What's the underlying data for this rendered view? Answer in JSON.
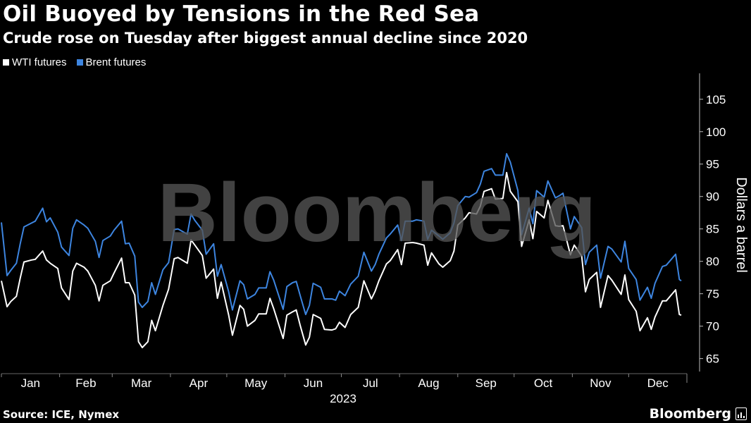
{
  "title": "Oil Buoyed by Tensions in the Red Sea",
  "subtitle": "Crude rose on Tuesday after biggest annual decline since 2020",
  "source": "Source: ICE, Nymex",
  "brand": "Bloomberg",
  "watermark": "Bloomberg",
  "chart_data": {
    "type": "line",
    "xlabel": "2023",
    "ylabel": "Dollars a barrel",
    "ylim": [
      63,
      109
    ],
    "yticks": [
      65,
      70,
      75,
      80,
      85,
      90,
      95,
      100,
      105
    ],
    "x_start": "2023-01-01",
    "x_end": "2024-01-01",
    "months": [
      "Jan",
      "Feb",
      "Mar",
      "Apr",
      "May",
      "Jun",
      "Jul",
      "Aug",
      "Sep",
      "Oct",
      "Nov",
      "Dec"
    ],
    "grid": false,
    "legend_position": "top-left",
    "series": [
      {
        "name": "WTI futures",
        "color": "#ffffff",
        "points": [
          [
            "2023-01-01",
            77
          ],
          [
            "2023-01-04",
            73
          ],
          [
            "2023-01-06",
            73.8
          ],
          [
            "2023-01-09",
            74.6
          ],
          [
            "2023-01-11",
            77.4
          ],
          [
            "2023-01-13",
            79.9
          ],
          [
            "2023-01-17",
            80.2
          ],
          [
            "2023-01-19",
            80.3
          ],
          [
            "2023-01-23",
            81.6
          ],
          [
            "2023-01-25",
            80.2
          ],
          [
            "2023-01-27",
            79.7
          ],
          [
            "2023-01-31",
            78.9
          ],
          [
            "2023-02-02",
            75.9
          ],
          [
            "2023-02-06",
            74.1
          ],
          [
            "2023-02-08",
            78.5
          ],
          [
            "2023-02-10",
            79.7
          ],
          [
            "2023-02-14",
            79.1
          ],
          [
            "2023-02-16",
            78.5
          ],
          [
            "2023-02-20",
            76.3
          ],
          [
            "2023-02-22",
            73.9
          ],
          [
            "2023-02-24",
            76.3
          ],
          [
            "2023-02-28",
            77
          ],
          [
            "2023-03-02",
            78.2
          ],
          [
            "2023-03-06",
            80.5
          ],
          [
            "2023-03-08",
            76.7
          ],
          [
            "2023-03-10",
            76.7
          ],
          [
            "2023-03-13",
            74.8
          ],
          [
            "2023-03-15",
            67.6
          ],
          [
            "2023-03-17",
            66.7
          ],
          [
            "2023-03-20",
            67.6
          ],
          [
            "2023-03-22",
            70.9
          ],
          [
            "2023-03-24",
            69.3
          ],
          [
            "2023-03-28",
            73.2
          ],
          [
            "2023-03-31",
            75.7
          ],
          [
            "2023-04-03",
            80.4
          ],
          [
            "2023-04-05",
            80.6
          ],
          [
            "2023-04-10",
            79.7
          ],
          [
            "2023-04-12",
            83.3
          ],
          [
            "2023-04-14",
            82.5
          ],
          [
            "2023-04-18",
            80.9
          ],
          [
            "2023-04-20",
            77.4
          ],
          [
            "2023-04-24",
            78.8
          ],
          [
            "2023-04-26",
            74.3
          ],
          [
            "2023-04-28",
            76.8
          ],
          [
            "2023-05-02",
            71.7
          ],
          [
            "2023-05-04",
            68.6
          ],
          [
            "2023-05-08",
            73.2
          ],
          [
            "2023-05-10",
            72.6
          ],
          [
            "2023-05-12",
            70
          ],
          [
            "2023-05-16",
            70.9
          ],
          [
            "2023-05-18",
            71.9
          ],
          [
            "2023-05-22",
            71.9
          ],
          [
            "2023-05-24",
            74.3
          ],
          [
            "2023-05-26",
            72.7
          ],
          [
            "2023-05-31",
            68.1
          ],
          [
            "2023-06-02",
            71.7
          ],
          [
            "2023-06-05",
            72.2
          ],
          [
            "2023-06-07",
            72.5
          ],
          [
            "2023-06-09",
            70.2
          ],
          [
            "2023-06-12",
            67.1
          ],
          [
            "2023-06-14",
            68.3
          ],
          [
            "2023-06-16",
            71.8
          ],
          [
            "2023-06-20",
            71.2
          ],
          [
            "2023-06-22",
            69.5
          ],
          [
            "2023-06-26",
            69.4
          ],
          [
            "2023-06-28",
            69.6
          ],
          [
            "2023-06-30",
            70.6
          ],
          [
            "2023-07-03",
            69.8
          ],
          [
            "2023-07-06",
            71.8
          ],
          [
            "2023-07-10",
            72.9
          ],
          [
            "2023-07-13",
            77
          ],
          [
            "2023-07-17",
            74.2
          ],
          [
            "2023-07-19",
            75.4
          ],
          [
            "2023-07-21",
            77
          ],
          [
            "2023-07-25",
            79.6
          ],
          [
            "2023-07-27",
            80.1
          ],
          [
            "2023-07-31",
            81.8
          ],
          [
            "2023-08-02",
            79.5
          ],
          [
            "2023-08-04",
            82.8
          ],
          [
            "2023-08-08",
            82.9
          ],
          [
            "2023-08-10",
            82.8
          ],
          [
            "2023-08-14",
            82.5
          ],
          [
            "2023-08-16",
            79.4
          ],
          [
            "2023-08-18",
            81.3
          ],
          [
            "2023-08-22",
            79.6
          ],
          [
            "2023-08-24",
            79.1
          ],
          [
            "2023-08-28",
            80.1
          ],
          [
            "2023-08-30",
            81.6
          ],
          [
            "2023-09-01",
            85.6
          ],
          [
            "2023-09-05",
            86.7
          ],
          [
            "2023-09-07",
            87.5
          ],
          [
            "2023-09-11",
            87.3
          ],
          [
            "2023-09-13",
            88.5
          ],
          [
            "2023-09-15",
            90.8
          ],
          [
            "2023-09-19",
            91.2
          ],
          [
            "2023-09-21",
            89.6
          ],
          [
            "2023-09-25",
            89.7
          ],
          [
            "2023-09-27",
            93.7
          ],
          [
            "2023-09-29",
            90.8
          ],
          [
            "2023-10-03",
            89.2
          ],
          [
            "2023-10-05",
            82.3
          ],
          [
            "2023-10-09",
            86.4
          ],
          [
            "2023-10-11",
            83.5
          ],
          [
            "2023-10-13",
            87.7
          ],
          [
            "2023-10-17",
            86.7
          ],
          [
            "2023-10-19",
            89.4
          ],
          [
            "2023-10-23",
            85.5
          ],
          [
            "2023-10-25",
            85.4
          ],
          [
            "2023-10-27",
            85.5
          ],
          [
            "2023-10-31",
            81
          ],
          [
            "2023-11-02",
            82.5
          ],
          [
            "2023-11-06",
            80.8
          ],
          [
            "2023-11-08",
            75.3
          ],
          [
            "2023-11-10",
            77.2
          ],
          [
            "2023-11-14",
            78.3
          ],
          [
            "2023-11-16",
            72.9
          ],
          [
            "2023-11-20",
            77.8
          ],
          [
            "2023-11-22",
            77.1
          ],
          [
            "2023-11-27",
            74.9
          ],
          [
            "2023-11-29",
            77.9
          ],
          [
            "2023-12-01",
            74.1
          ],
          [
            "2023-12-05",
            72.3
          ],
          [
            "2023-12-07",
            69.3
          ],
          [
            "2023-12-11",
            71.3
          ],
          [
            "2023-12-13",
            69.5
          ],
          [
            "2023-12-15",
            71.4
          ],
          [
            "2023-12-19",
            73.9
          ],
          [
            "2023-12-21",
            73.9
          ],
          [
            "2023-12-26",
            75.6
          ],
          [
            "2023-12-28",
            71.8
          ],
          [
            "2023-12-29",
            71.7
          ]
        ]
      },
      {
        "name": "Brent futures",
        "color": "#3d85e0",
        "points": [
          [
            "2023-01-01",
            86
          ],
          [
            "2023-01-04",
            77.8
          ],
          [
            "2023-01-06",
            78.6
          ],
          [
            "2023-01-09",
            79.7
          ],
          [
            "2023-01-11",
            82.7
          ],
          [
            "2023-01-13",
            85.3
          ],
          [
            "2023-01-17",
            85.9
          ],
          [
            "2023-01-19",
            86.2
          ],
          [
            "2023-01-23",
            88.2
          ],
          [
            "2023-01-25",
            86.1
          ],
          [
            "2023-01-27",
            86.7
          ],
          [
            "2023-01-31",
            84.5
          ],
          [
            "2023-02-02",
            82.2
          ],
          [
            "2023-02-06",
            80.9
          ],
          [
            "2023-02-08",
            85.1
          ],
          [
            "2023-02-10",
            86.4
          ],
          [
            "2023-02-14",
            85.6
          ],
          [
            "2023-02-16",
            85.1
          ],
          [
            "2023-02-20",
            83.1
          ],
          [
            "2023-02-22",
            80.6
          ],
          [
            "2023-02-24",
            83.2
          ],
          [
            "2023-02-28",
            83.9
          ],
          [
            "2023-03-02",
            84.8
          ],
          [
            "2023-03-06",
            86.2
          ],
          [
            "2023-03-08",
            82.7
          ],
          [
            "2023-03-10",
            82.8
          ],
          [
            "2023-03-13",
            80.8
          ],
          [
            "2023-03-15",
            73.7
          ],
          [
            "2023-03-17",
            72.9
          ],
          [
            "2023-03-20",
            73.8
          ],
          [
            "2023-03-22",
            76.7
          ],
          [
            "2023-03-24",
            74.9
          ],
          [
            "2023-03-28",
            78.7
          ],
          [
            "2023-03-31",
            79.8
          ],
          [
            "2023-04-03",
            84.9
          ],
          [
            "2023-04-05",
            85
          ],
          [
            "2023-04-10",
            84.2
          ],
          [
            "2023-04-12",
            87.3
          ],
          [
            "2023-04-14",
            86.3
          ],
          [
            "2023-04-18",
            84.8
          ],
          [
            "2023-04-20",
            81.1
          ],
          [
            "2023-04-24",
            82.7
          ],
          [
            "2023-04-26",
            77.7
          ],
          [
            "2023-04-28",
            79.5
          ],
          [
            "2023-05-02",
            75.3
          ],
          [
            "2023-05-04",
            72.5
          ],
          [
            "2023-05-08",
            77
          ],
          [
            "2023-05-10",
            76.4
          ],
          [
            "2023-05-12",
            74.2
          ],
          [
            "2023-05-16",
            74.9
          ],
          [
            "2023-05-18",
            75.9
          ],
          [
            "2023-05-22",
            75.9
          ],
          [
            "2023-05-24",
            78.4
          ],
          [
            "2023-05-26",
            77.1
          ],
          [
            "2023-05-31",
            72.6
          ],
          [
            "2023-06-02",
            76.1
          ],
          [
            "2023-06-05",
            76.7
          ],
          [
            "2023-06-07",
            76.9
          ],
          [
            "2023-06-09",
            74.8
          ],
          [
            "2023-06-12",
            71.8
          ],
          [
            "2023-06-14",
            73.2
          ],
          [
            "2023-06-16",
            76.6
          ],
          [
            "2023-06-20",
            76
          ],
          [
            "2023-06-22",
            74.2
          ],
          [
            "2023-06-26",
            74.2
          ],
          [
            "2023-06-28",
            74
          ],
          [
            "2023-06-30",
            75.4
          ],
          [
            "2023-07-03",
            74.7
          ],
          [
            "2023-07-06",
            76.5
          ],
          [
            "2023-07-10",
            77.7
          ],
          [
            "2023-07-13",
            81.4
          ],
          [
            "2023-07-17",
            78.5
          ],
          [
            "2023-07-19",
            79.5
          ],
          [
            "2023-07-21",
            81.1
          ],
          [
            "2023-07-25",
            83.6
          ],
          [
            "2023-07-27",
            84.2
          ],
          [
            "2023-07-31",
            85.6
          ],
          [
            "2023-08-02",
            83.2
          ],
          [
            "2023-08-04",
            86.2
          ],
          [
            "2023-08-08",
            86.2
          ],
          [
            "2023-08-10",
            86.4
          ],
          [
            "2023-08-14",
            86.2
          ],
          [
            "2023-08-16",
            83.4
          ],
          [
            "2023-08-18",
            84.8
          ],
          [
            "2023-08-22",
            83.9
          ],
          [
            "2023-08-24",
            83.4
          ],
          [
            "2023-08-28",
            84.4
          ],
          [
            "2023-08-30",
            85.9
          ],
          [
            "2023-09-01",
            88.6
          ],
          [
            "2023-09-05",
            90
          ],
          [
            "2023-09-07",
            89.9
          ],
          [
            "2023-09-11",
            90.6
          ],
          [
            "2023-09-13",
            91.9
          ],
          [
            "2023-09-15",
            93.9
          ],
          [
            "2023-09-19",
            94.3
          ],
          [
            "2023-09-21",
            93.3
          ],
          [
            "2023-09-25",
            93.3
          ],
          [
            "2023-09-27",
            96.6
          ],
          [
            "2023-09-29",
            95.3
          ],
          [
            "2023-10-03",
            90.9
          ],
          [
            "2023-10-05",
            84.1
          ],
          [
            "2023-10-09",
            88.2
          ],
          [
            "2023-10-11",
            85.8
          ],
          [
            "2023-10-13",
            90.9
          ],
          [
            "2023-10-17",
            89.9
          ],
          [
            "2023-10-19",
            92.4
          ],
          [
            "2023-10-23",
            89.8
          ],
          [
            "2023-10-25",
            90.1
          ],
          [
            "2023-10-27",
            90.5
          ],
          [
            "2023-10-31",
            85
          ],
          [
            "2023-11-02",
            86.9
          ],
          [
            "2023-11-06",
            85.2
          ],
          [
            "2023-11-08",
            79.5
          ],
          [
            "2023-11-10",
            81.4
          ],
          [
            "2023-11-14",
            82.5
          ],
          [
            "2023-11-16",
            77.4
          ],
          [
            "2023-11-20",
            82.3
          ],
          [
            "2023-11-22",
            81.9
          ],
          [
            "2023-11-27",
            79.9
          ],
          [
            "2023-11-29",
            83.1
          ],
          [
            "2023-12-01",
            78.9
          ],
          [
            "2023-12-05",
            77.2
          ],
          [
            "2023-12-07",
            74
          ],
          [
            "2023-12-11",
            76
          ],
          [
            "2023-12-13",
            74.3
          ],
          [
            "2023-12-15",
            76.6
          ],
          [
            "2023-12-19",
            79.2
          ],
          [
            "2023-12-21",
            79.4
          ],
          [
            "2023-12-26",
            81.1
          ],
          [
            "2023-12-28",
            77.2
          ],
          [
            "2023-12-29",
            77
          ]
        ]
      }
    ]
  }
}
